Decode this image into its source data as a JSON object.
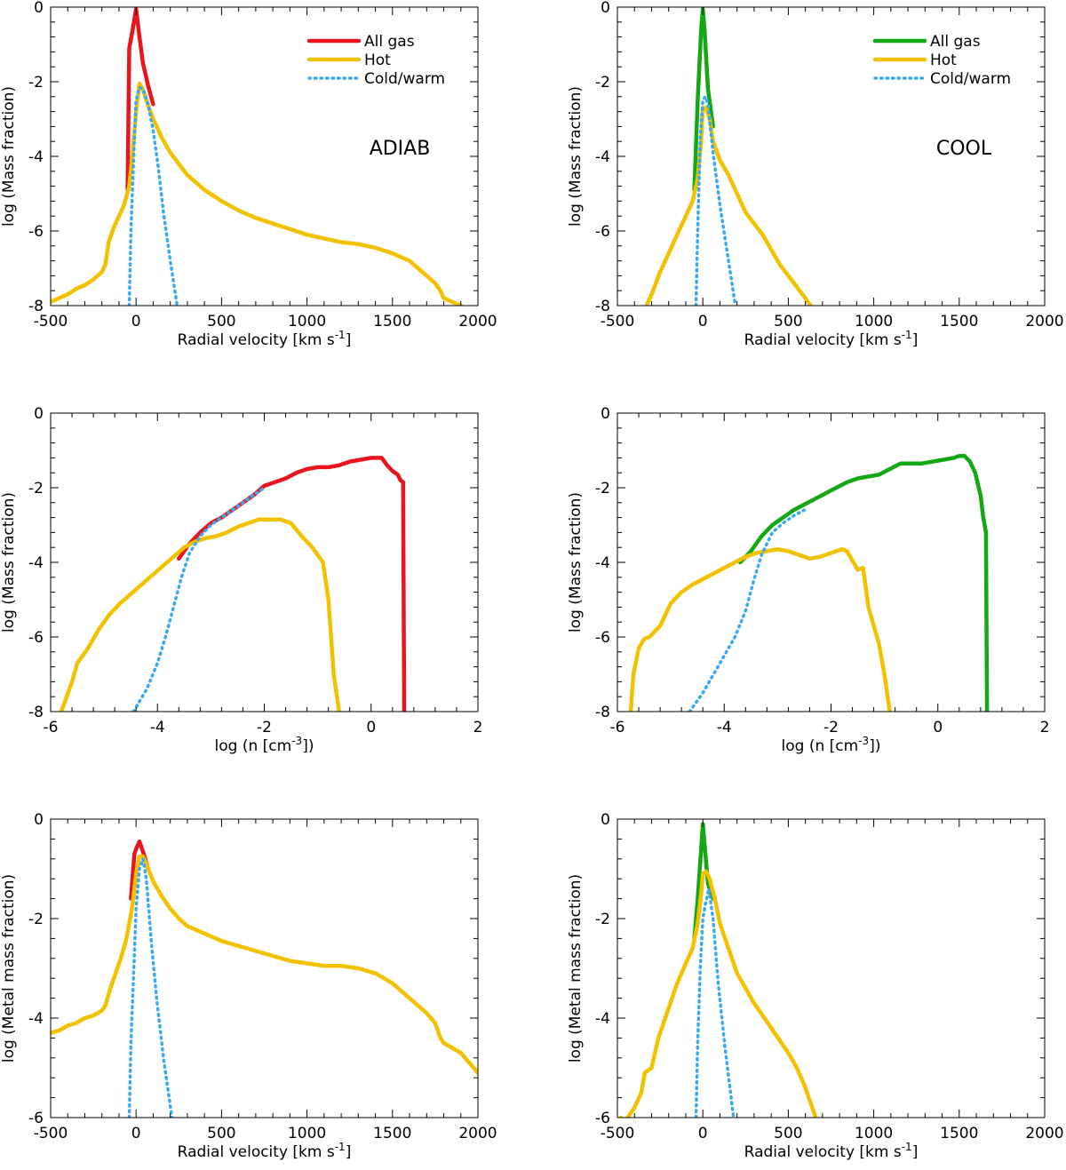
{
  "colors": {
    "adiab_all": "#e8141e",
    "cool_all": "#14a814",
    "hot": "#f2c200",
    "cold": "#3aaaf0"
  },
  "chart_data": [
    {
      "id": "p1",
      "type": "line",
      "xlim": [
        -500,
        2000
      ],
      "ylim": [
        -8,
        0
      ],
      "xticks": [
        -500,
        0,
        500,
        1000,
        1500,
        2000
      ],
      "yticks": [
        -8,
        -6,
        -4,
        -2,
        0
      ],
      "xlabel_main": "Radial velocity [km s",
      "xlabel_sup": "-1",
      "xlabel_tail": "]",
      "ylabel": "log (Mass fraction)",
      "annotation": "ADIAB",
      "legend": [
        "All gas",
        "Hot",
        "Cold/warm"
      ],
      "series": [
        {
          "name": "All gas",
          "color_key": "adiab_all",
          "style": "solid",
          "x": [
            -50,
            -40,
            -20,
            0,
            20,
            40,
            70,
            100
          ],
          "y": [
            -4.9,
            -1.1,
            -0.6,
            -0.05,
            -0.8,
            -1.5,
            -2.1,
            -2.6
          ]
        },
        {
          "name": "Hot",
          "color_key": "hot",
          "style": "solid",
          "x": [
            -500,
            -450,
            -400,
            -350,
            -300,
            -250,
            -200,
            -180,
            -160,
            -130,
            -100,
            -70,
            -40,
            -20,
            0,
            20,
            40,
            60,
            100,
            150,
            200,
            250,
            300,
            400,
            500,
            600,
            700,
            800,
            900,
            1000,
            1100,
            1200,
            1300,
            1400,
            1500,
            1550,
            1600,
            1650,
            1700,
            1750,
            1780,
            1800,
            1850,
            1900
          ],
          "y": [
            -7.9,
            -7.8,
            -7.7,
            -7.55,
            -7.45,
            -7.3,
            -7.1,
            -6.9,
            -6.3,
            -5.9,
            -5.6,
            -5.3,
            -4.8,
            -3.9,
            -2.8,
            -2.05,
            -2.2,
            -2.5,
            -3.0,
            -3.5,
            -3.9,
            -4.2,
            -4.5,
            -4.9,
            -5.2,
            -5.45,
            -5.65,
            -5.8,
            -5.95,
            -6.1,
            -6.2,
            -6.3,
            -6.35,
            -6.45,
            -6.6,
            -6.7,
            -6.8,
            -7.0,
            -7.2,
            -7.4,
            -7.6,
            -7.8,
            -7.9,
            -8.0
          ]
        },
        {
          "name": "Cold/warm",
          "color_key": "cold",
          "style": "dotted",
          "x": [
            -40,
            -30,
            -10,
            0,
            20,
            40,
            70,
            100,
            130,
            160,
            200,
            240
          ],
          "y": [
            -8.0,
            -6.0,
            -3.5,
            -2.5,
            -2.15,
            -2.2,
            -2.6,
            -3.3,
            -4.3,
            -5.5,
            -6.8,
            -8.0
          ]
        }
      ]
    },
    {
      "id": "p2",
      "type": "line",
      "xlim": [
        -500,
        2000
      ],
      "ylim": [
        -8,
        0
      ],
      "xticks": [
        -500,
        0,
        500,
        1000,
        1500,
        2000
      ],
      "yticks": [
        -8,
        -6,
        -4,
        -2,
        0
      ],
      "xlabel_main": "Radial velocity [km s",
      "xlabel_sup": "-1",
      "xlabel_tail": "]",
      "ylabel": "log (Mass fraction)",
      "annotation": "COOL",
      "legend": [
        "All gas",
        "Hot",
        "Cold/warm"
      ],
      "series": [
        {
          "name": "All gas",
          "color_key": "cool_all",
          "style": "solid",
          "x": [
            -50,
            -30,
            -10,
            0,
            10,
            30,
            60
          ],
          "y": [
            -4.9,
            -2.5,
            -0.6,
            -0.05,
            -0.6,
            -2.2,
            -3.2
          ]
        },
        {
          "name": "Hot",
          "color_key": "hot",
          "style": "solid",
          "x": [
            -330,
            -300,
            -250,
            -200,
            -150,
            -100,
            -60,
            -30,
            -10,
            0,
            20,
            40,
            60,
            100,
            150,
            200,
            250,
            300,
            350,
            400,
            450,
            500,
            550,
            600,
            630
          ],
          "y": [
            -8.0,
            -7.7,
            -7.1,
            -6.6,
            -6.1,
            -5.6,
            -5.2,
            -4.6,
            -3.6,
            -2.7,
            -2.7,
            -3.0,
            -3.6,
            -4.1,
            -4.5,
            -5.0,
            -5.5,
            -5.8,
            -6.1,
            -6.5,
            -6.9,
            -7.2,
            -7.5,
            -7.8,
            -8.0
          ]
        },
        {
          "name": "Cold/warm",
          "color_key": "cold",
          "style": "dotted",
          "x": [
            -40,
            -30,
            -15,
            0,
            15,
            30,
            60,
            100,
            150,
            190
          ],
          "y": [
            -8.0,
            -6.0,
            -3.5,
            -2.5,
            -2.4,
            -2.6,
            -3.9,
            -5.3,
            -6.8,
            -8.0
          ]
        }
      ]
    },
    {
      "id": "p3",
      "type": "line",
      "xlim": [
        -6,
        2
      ],
      "ylim": [
        -8,
        0
      ],
      "xticks": [
        -6,
        -4,
        -2,
        0,
        2
      ],
      "yticks": [
        -8,
        -6,
        -4,
        -2,
        0
      ],
      "xlabel_main": "log (n [cm",
      "xlabel_sup": "-3",
      "xlabel_tail": "])",
      "ylabel": "log (Mass fraction)",
      "series": [
        {
          "name": "All gas",
          "color_key": "adiab_all",
          "style": "solid",
          "x": [
            -3.6,
            -3.4,
            -3.2,
            -3.0,
            -2.8,
            -2.6,
            -2.4,
            -2.2,
            -2.0,
            -1.8,
            -1.6,
            -1.4,
            -1.2,
            -1.0,
            -0.8,
            -0.6,
            -0.4,
            -0.2,
            0.0,
            0.2,
            0.3,
            0.4,
            0.5,
            0.55,
            0.6,
            0.62
          ],
          "y": [
            -3.9,
            -3.5,
            -3.2,
            -2.95,
            -2.8,
            -2.6,
            -2.4,
            -2.2,
            -1.95,
            -1.85,
            -1.75,
            -1.6,
            -1.5,
            -1.45,
            -1.45,
            -1.4,
            -1.3,
            -1.25,
            -1.2,
            -1.2,
            -1.4,
            -1.55,
            -1.65,
            -1.8,
            -1.85,
            -8.0
          ]
        },
        {
          "name": "Hot",
          "color_key": "hot",
          "style": "solid",
          "x": [
            -5.8,
            -5.6,
            -5.5,
            -5.3,
            -5.1,
            -4.9,
            -4.7,
            -4.5,
            -4.3,
            -4.1,
            -3.9,
            -3.7,
            -3.5,
            -3.3,
            -3.1,
            -2.9,
            -2.7,
            -2.5,
            -2.3,
            -2.1,
            -1.9,
            -1.7,
            -1.5,
            -1.3,
            -1.1,
            -0.9,
            -0.8,
            -0.7,
            -0.6
          ],
          "y": [
            -8.0,
            -7.2,
            -6.7,
            -6.3,
            -5.8,
            -5.4,
            -5.1,
            -4.85,
            -4.6,
            -4.35,
            -4.1,
            -3.85,
            -3.6,
            -3.45,
            -3.35,
            -3.3,
            -3.2,
            -3.05,
            -2.95,
            -2.85,
            -2.85,
            -2.85,
            -2.95,
            -3.3,
            -3.6,
            -4.0,
            -5.0,
            -7.0,
            -8.0
          ]
        },
        {
          "name": "Cold/warm",
          "color_key": "cold",
          "style": "dotted",
          "x": [
            -4.45,
            -4.2,
            -4.0,
            -3.85,
            -3.7,
            -3.55,
            -3.4,
            -3.2,
            -3.0,
            -2.8,
            -2.6,
            -2.4,
            -2.2,
            -2.0
          ],
          "y": [
            -8.0,
            -7.4,
            -6.7,
            -6.0,
            -5.2,
            -4.4,
            -3.75,
            -3.3,
            -3.0,
            -2.8,
            -2.6,
            -2.4,
            -2.2,
            -2.0
          ]
        }
      ]
    },
    {
      "id": "p4",
      "type": "line",
      "xlim": [
        -6,
        2
      ],
      "ylim": [
        -8,
        0
      ],
      "xticks": [
        -6,
        -4,
        -2,
        0,
        2
      ],
      "yticks": [
        -8,
        -6,
        -4,
        -2,
        0
      ],
      "xlabel_main": "log (n [cm",
      "xlabel_sup": "-3",
      "xlabel_tail": "])",
      "ylabel": "log (Mass fraction)",
      "series": [
        {
          "name": "All gas",
          "color_key": "cool_all",
          "style": "solid",
          "x": [
            -3.7,
            -3.5,
            -3.3,
            -3.1,
            -2.9,
            -2.7,
            -2.5,
            -2.3,
            -2.1,
            -1.9,
            -1.7,
            -1.5,
            -1.3,
            -1.1,
            -0.9,
            -0.7,
            -0.5,
            -0.3,
            -0.1,
            0.1,
            0.3,
            0.4,
            0.5,
            0.6,
            0.7,
            0.8,
            0.85,
            0.9,
            0.92
          ],
          "y": [
            -4.0,
            -3.7,
            -3.3,
            -3.0,
            -2.8,
            -2.6,
            -2.45,
            -2.3,
            -2.15,
            -2.0,
            -1.85,
            -1.75,
            -1.7,
            -1.65,
            -1.5,
            -1.35,
            -1.35,
            -1.35,
            -1.3,
            -1.25,
            -1.2,
            -1.15,
            -1.15,
            -1.3,
            -1.6,
            -2.2,
            -2.8,
            -3.2,
            -8.0
          ]
        },
        {
          "name": "Hot",
          "color_key": "hot",
          "style": "solid",
          "x": [
            -5.75,
            -5.7,
            -5.6,
            -5.5,
            -5.4,
            -5.2,
            -5.0,
            -4.8,
            -4.6,
            -4.4,
            -4.2,
            -4.0,
            -3.8,
            -3.6,
            -3.4,
            -3.2,
            -3.0,
            -2.8,
            -2.6,
            -2.4,
            -2.2,
            -2.0,
            -1.8,
            -1.7,
            -1.5,
            -1.4,
            -1.3,
            -1.2,
            -1.1,
            -1.0,
            -0.9
          ],
          "y": [
            -8.0,
            -7.0,
            -6.3,
            -6.05,
            -6.0,
            -5.7,
            -5.1,
            -4.8,
            -4.6,
            -4.45,
            -4.3,
            -4.15,
            -4.0,
            -3.85,
            -3.75,
            -3.7,
            -3.65,
            -3.7,
            -3.8,
            -3.9,
            -3.85,
            -3.75,
            -3.65,
            -3.7,
            -4.2,
            -4.15,
            -5.2,
            -5.7,
            -6.2,
            -7.0,
            -8.0
          ]
        },
        {
          "name": "Cold/warm",
          "color_key": "cold",
          "style": "dotted",
          "x": [
            -4.65,
            -4.4,
            -4.2,
            -4.0,
            -3.8,
            -3.6,
            -3.45,
            -3.3,
            -3.1,
            -2.9,
            -2.7,
            -2.5
          ],
          "y": [
            -8.0,
            -7.5,
            -7.0,
            -6.5,
            -6.0,
            -5.3,
            -4.5,
            -3.8,
            -3.2,
            -2.95,
            -2.75,
            -2.6
          ]
        }
      ]
    },
    {
      "id": "p5",
      "type": "line",
      "xlim": [
        -500,
        2000
      ],
      "ylim": [
        -6,
        0
      ],
      "xticks": [
        -500,
        0,
        500,
        1000,
        1500,
        2000
      ],
      "yticks": [
        -6,
        -4,
        -2,
        0
      ],
      "xlabel_main": "Radial velocity [km s",
      "xlabel_sup": "-1",
      "xlabel_tail": "]",
      "ylabel": "log (Metal mass fraction)",
      "series": [
        {
          "name": "All gas",
          "color_key": "adiab_all",
          "style": "solid",
          "x": [
            -30,
            -10,
            0,
            20,
            40,
            70
          ],
          "y": [
            -1.6,
            -0.7,
            -0.6,
            -0.45,
            -0.65,
            -1.0
          ]
        },
        {
          "name": "Hot",
          "color_key": "hot",
          "style": "solid",
          "x": [
            -500,
            -450,
            -400,
            -350,
            -300,
            -250,
            -200,
            -180,
            -150,
            -120,
            -90,
            -60,
            -40,
            -20,
            0,
            20,
            40,
            60,
            100,
            150,
            200,
            250,
            300,
            400,
            500,
            600,
            700,
            800,
            900,
            1000,
            1100,
            1200,
            1300,
            1400,
            1500,
            1600,
            1700,
            1750,
            1780,
            1800,
            1850,
            1900,
            1950,
            2000
          ],
          "y": [
            -4.3,
            -4.25,
            -4.15,
            -4.1,
            -4.0,
            -3.95,
            -3.85,
            -3.75,
            -3.4,
            -3.1,
            -2.8,
            -2.45,
            -2.1,
            -1.7,
            -1.1,
            -0.75,
            -0.75,
            -0.9,
            -1.25,
            -1.55,
            -1.8,
            -2.0,
            -2.15,
            -2.3,
            -2.45,
            -2.55,
            -2.65,
            -2.75,
            -2.85,
            -2.9,
            -2.95,
            -2.95,
            -3.0,
            -3.1,
            -3.3,
            -3.6,
            -3.9,
            -4.1,
            -4.4,
            -4.5,
            -4.6,
            -4.7,
            -4.9,
            -5.1
          ]
        },
        {
          "name": "Cold/warm",
          "color_key": "cold",
          "style": "dotted",
          "x": [
            -40,
            -30,
            -10,
            0,
            20,
            40,
            60,
            90,
            120,
            160,
            210
          ],
          "y": [
            -6.0,
            -4.5,
            -2.7,
            -1.8,
            -1.0,
            -0.8,
            -1.2,
            -2.5,
            -3.6,
            -4.8,
            -6.0
          ]
        }
      ]
    },
    {
      "id": "p6",
      "type": "line",
      "xlim": [
        -500,
        2000
      ],
      "ylim": [
        -6,
        0
      ],
      "xticks": [
        -500,
        0,
        500,
        1000,
        1500,
        2000
      ],
      "yticks": [
        -6,
        -4,
        -2,
        0
      ],
      "xlabel_main": "Radial velocity [km s",
      "xlabel_sup": "-1",
      "xlabel_tail": "]",
      "ylabel": "log (Metal mass fraction)",
      "series": [
        {
          "name": "All gas",
          "color_key": "cool_all",
          "style": "solid",
          "x": [
            -50,
            -30,
            -10,
            0,
            10,
            30,
            60
          ],
          "y": [
            -2.4,
            -1.6,
            -0.6,
            -0.1,
            -0.5,
            -1.3,
            -1.6
          ]
        },
        {
          "name": "Hot",
          "color_key": "hot",
          "style": "solid",
          "x": [
            -480,
            -460,
            -440,
            -400,
            -360,
            -340,
            -300,
            -260,
            -200,
            -150,
            -100,
            -60,
            -30,
            -10,
            0,
            20,
            40,
            70,
            100,
            150,
            200,
            300,
            400,
            500,
            550,
            600,
            630,
            660,
            680
          ],
          "y": [
            -6.0,
            -6.1,
            -6.0,
            -5.8,
            -5.5,
            -5.1,
            -5.0,
            -4.4,
            -3.8,
            -3.3,
            -2.9,
            -2.6,
            -2.1,
            -1.5,
            -1.1,
            -1.05,
            -1.2,
            -1.6,
            -2.1,
            -2.6,
            -3.1,
            -3.7,
            -4.2,
            -4.7,
            -5.0,
            -5.4,
            -5.7,
            -6.0,
            -6.2
          ]
        },
        {
          "name": "Cold/warm",
          "color_key": "cold",
          "style": "dotted",
          "x": [
            -40,
            -30,
            -15,
            0,
            15,
            35,
            60,
            90,
            130,
            180
          ],
          "y": [
            -6.0,
            -4.5,
            -3.0,
            -2.0,
            -1.7,
            -1.4,
            -2.0,
            -3.3,
            -4.6,
            -6.0
          ]
        }
      ]
    }
  ]
}
